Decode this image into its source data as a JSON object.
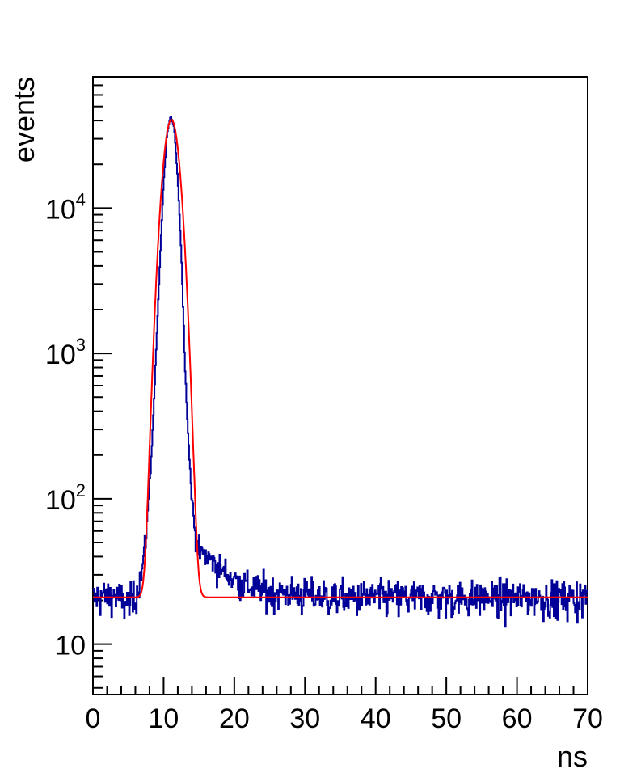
{
  "chart_data": {
    "type": "line",
    "title": "",
    "xlabel": "ns",
    "ylabel": "events",
    "xlim": [
      0,
      70
    ],
    "ylim": [
      4.5,
      80000
    ],
    "yscale": "log",
    "grid": false,
    "legend": "none",
    "x_ticks": [
      "0",
      "10",
      "20",
      "30",
      "40",
      "50",
      "60",
      "70"
    ],
    "y_ticks": [
      {
        "value": 10,
        "base": "10",
        "exp": ""
      },
      {
        "value": 100,
        "base": "10",
        "exp": "2"
      },
      {
        "value": 1000,
        "base": "10",
        "exp": "3"
      },
      {
        "value": 10000,
        "base": "10",
        "exp": "4"
      }
    ],
    "series": [
      {
        "kind": "histogram",
        "color": "#000099",
        "bin_width": 0.1,
        "points": [
          [
            0,
            20
          ],
          [
            1,
            22
          ],
          [
            2,
            21
          ],
          [
            3,
            22
          ],
          [
            4,
            20
          ],
          [
            5,
            19
          ],
          [
            6,
            21
          ],
          [
            6.5,
            27
          ],
          [
            7,
            33
          ],
          [
            7.5,
            55
          ],
          [
            8,
            120
          ],
          [
            8.5,
            330
          ],
          [
            9,
            1200
          ],
          [
            9.5,
            4500
          ],
          [
            10,
            15000
          ],
          [
            10.5,
            33000
          ],
          [
            11,
            43000
          ],
          [
            11.5,
            36000
          ],
          [
            12,
            16000
          ],
          [
            12.5,
            5000
          ],
          [
            13,
            900
          ],
          [
            13.5,
            250
          ],
          [
            14,
            100
          ],
          [
            14.5,
            55
          ],
          [
            15,
            44
          ],
          [
            16,
            40
          ],
          [
            17,
            37
          ],
          [
            18,
            33
          ],
          [
            20,
            28
          ],
          [
            22,
            25
          ],
          [
            25,
            23
          ],
          [
            30,
            22
          ],
          [
            35,
            21
          ],
          [
            40,
            21
          ],
          [
            45,
            21
          ],
          [
            50,
            21
          ],
          [
            55,
            21
          ],
          [
            60,
            21
          ],
          [
            65,
            21
          ],
          [
            70,
            21
          ]
        ]
      },
      {
        "kind": "fit",
        "color": "#ff0000",
        "baseline": 21,
        "amplitude": 40500,
        "mean": 11.1,
        "sigma": 0.95
      }
    ]
  }
}
